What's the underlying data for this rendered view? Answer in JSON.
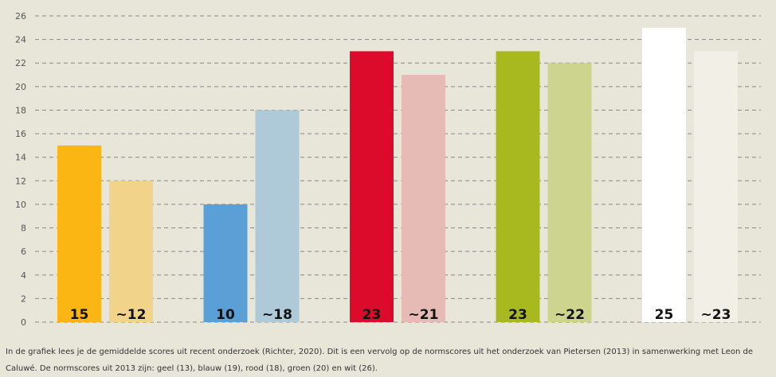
{
  "caption": "In de grafiek lees je de gemiddelde scores uit recent onderzoek (Richter, 2020). Dit is een vervolg op de normscores uit het onderzoek van Pietersen (2013) in samenwerking met Leon de Caluwé. De normscores uit 2013 zijn: geel (13), blauw (19), rood (18), groen (20) en wit (26).",
  "chart_data": {
    "type": "bar",
    "title": "",
    "xlabel": "",
    "ylabel": "",
    "ylim": [
      0,
      26
    ],
    "yticks": [
      0,
      2,
      4,
      6,
      8,
      10,
      12,
      14,
      16,
      18,
      20,
      22,
      24,
      26
    ],
    "grid": true,
    "legend": "none",
    "groups": [
      {
        "name": "geel",
        "bars": [
          {
            "value": 15,
            "label": "15",
            "color": "#fbb614"
          },
          {
            "value": 12,
            "label": "~12",
            "color": "#f1d48a"
          }
        ]
      },
      {
        "name": "blauw",
        "bars": [
          {
            "value": 10,
            "label": "10",
            "color": "#5aa0d6"
          },
          {
            "value": 18,
            "label": "~18",
            "color": "#aecad8"
          }
        ]
      },
      {
        "name": "rood",
        "bars": [
          {
            "value": 23,
            "label": "23",
            "color": "#dc0a2b"
          },
          {
            "value": 21,
            "label": "~21",
            "color": "#e6bbb6"
          }
        ]
      },
      {
        "name": "groen",
        "bars": [
          {
            "value": 23,
            "label": "23",
            "color": "#a8b920"
          },
          {
            "value": 22,
            "label": "~22",
            "color": "#ccd48e"
          }
        ]
      },
      {
        "name": "wit",
        "bars": [
          {
            "value": 25,
            "label": "25",
            "color": "#ffffff"
          },
          {
            "value": 23,
            "label": "~23",
            "color": "#f1efe6"
          }
        ]
      }
    ]
  }
}
